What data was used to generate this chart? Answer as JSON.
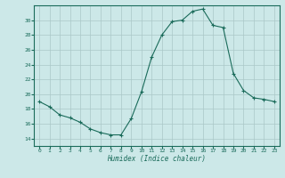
{
  "x": [
    0,
    1,
    2,
    3,
    4,
    5,
    6,
    7,
    8,
    9,
    10,
    11,
    12,
    13,
    14,
    15,
    16,
    17,
    18,
    19,
    20,
    21,
    22,
    23
  ],
  "y": [
    19.0,
    18.3,
    17.2,
    16.8,
    16.2,
    15.3,
    14.8,
    14.5,
    14.5,
    16.7,
    20.3,
    25.0,
    28.0,
    29.8,
    30.0,
    31.2,
    31.5,
    29.3,
    29.0,
    22.8,
    20.5,
    19.5,
    19.3,
    19.0
  ],
  "line_color": "#1a6b5a",
  "marker_color": "#1a6b5a",
  "bg_color": "#cce8e8",
  "grid_color": "#aac8c8",
  "axis_color": "#1a6b5a",
  "xlabel": "Humidex (Indice chaleur)",
  "ylim": [
    13,
    32
  ],
  "xlim": [
    -0.5,
    23.5
  ],
  "yticks": [
    14,
    16,
    18,
    20,
    22,
    24,
    26,
    28,
    30
  ],
  "xticks": [
    0,
    1,
    2,
    3,
    4,
    5,
    6,
    7,
    8,
    9,
    10,
    11,
    12,
    13,
    14,
    15,
    16,
    17,
    18,
    19,
    20,
    21,
    22,
    23
  ]
}
